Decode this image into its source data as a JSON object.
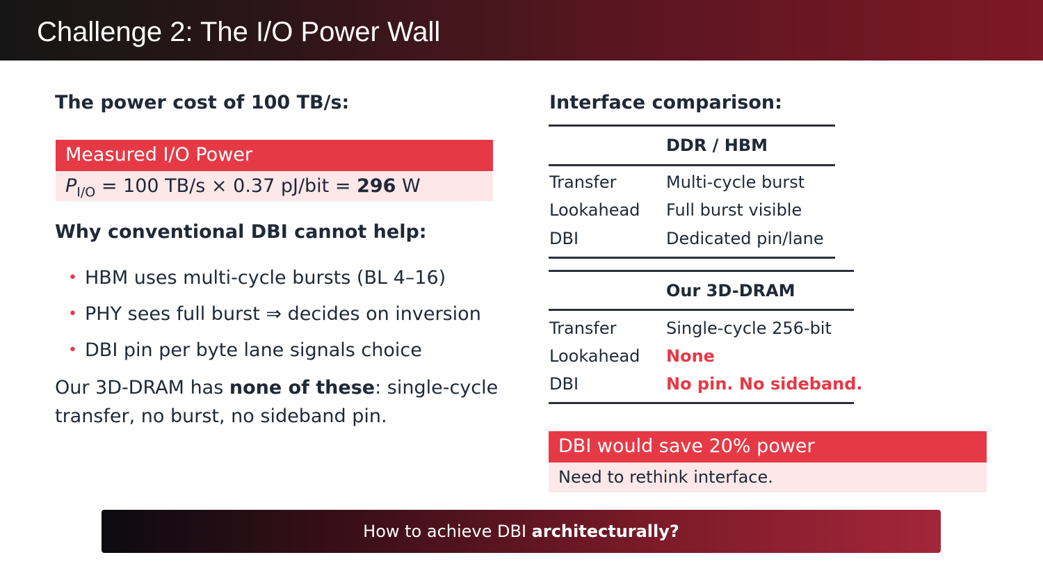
{
  "slide": {
    "title": "Challenge 2: The I/O Power Wall"
  },
  "left": {
    "heading": "The power cost of 100 TB/s:",
    "box": {
      "header": "Measured I/O Power",
      "formula_symbol": "P",
      "formula_subscript": "I/O",
      "formula_rest": " = 100 TB/s × 0.37 pJ/bit = ",
      "formula_value": "296",
      "formula_unit": " W"
    },
    "why_heading": "Why conventional DBI cannot help:",
    "bullets": [
      "HBM uses multi-cycle bursts (BL 4–16)",
      "PHY sees full burst ⇒ decides on inversion",
      "DBI pin per byte lane signals choice"
    ],
    "paragraph": {
      "before": "Our 3D-DRAM has ",
      "bold": "none of these",
      "after": ": single-cycle transfer, no burst, no sideband pin."
    }
  },
  "right": {
    "heading": "Interface comparison:",
    "table1": {
      "header": "DDR / HBM",
      "rows": [
        {
          "label": "Transfer",
          "value": "Multi-cycle burst"
        },
        {
          "label": "Lookahead",
          "value": "Full burst visible"
        },
        {
          "label": "DBI",
          "value": "Dedicated pin/lane"
        }
      ]
    },
    "table2": {
      "header": "Our 3D-DRAM",
      "rows": [
        {
          "label": "Transfer",
          "value": "Single-cycle 256-bit"
        },
        {
          "label": "Lookahead",
          "value": "None"
        },
        {
          "label": "DBI",
          "value": "No pin. No sideband."
        }
      ]
    },
    "box": {
      "header": "DBI would save 20% power",
      "body": "Need to rethink interface."
    }
  },
  "footer": {
    "before": "How to achieve DBI ",
    "bold": "architecturally?"
  },
  "colors": {
    "accent": "#e63946",
    "box_fill": "#fde7e8",
    "text": "#1f2937"
  }
}
